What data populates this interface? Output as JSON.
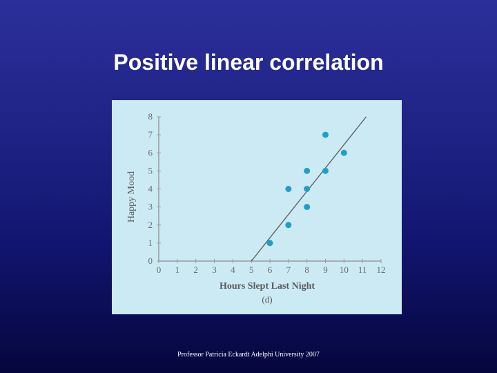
{
  "slide": {
    "title": "Positive linear correlation",
    "footer": "Professor Patricia Eckardt Adelphi University 2007"
  },
  "chart_data": {
    "type": "scatter",
    "title": "",
    "xlabel": "Hours Slept Last Night",
    "ylabel": "Happy Mood",
    "caption": "(d)",
    "xlim": [
      0,
      12
    ],
    "ylim": [
      0,
      8
    ],
    "xticks": [
      0,
      1,
      2,
      3,
      4,
      5,
      6,
      7,
      8,
      9,
      10,
      11,
      12
    ],
    "yticks": [
      0,
      1,
      2,
      3,
      4,
      5,
      6,
      7,
      8
    ],
    "points": [
      {
        "x": 6,
        "y": 1
      },
      {
        "x": 7,
        "y": 2
      },
      {
        "x": 7,
        "y": 4
      },
      {
        "x": 8,
        "y": 3
      },
      {
        "x": 8,
        "y": 4
      },
      {
        "x": 8,
        "y": 5
      },
      {
        "x": 9,
        "y": 5
      },
      {
        "x": 9,
        "y": 7
      },
      {
        "x": 10,
        "y": 6
      }
    ],
    "regression_line": {
      "x1": 5,
      "y1": 0,
      "x2": 11.2,
      "y2": 8
    },
    "colors": {
      "panel": "#cbeaf4",
      "points": "#1f9fc6",
      "line": "#5a5a5a",
      "axis": "#9a9a9a"
    }
  }
}
